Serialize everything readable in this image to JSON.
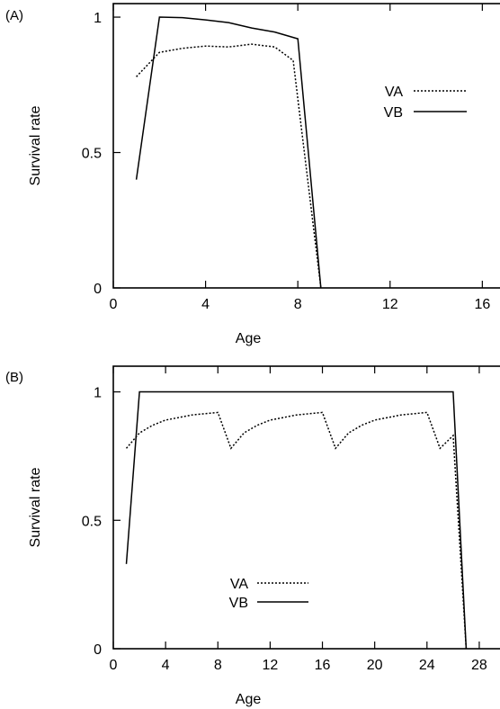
{
  "chart_data": [
    {
      "type": "line",
      "panel_label": "(A)",
      "xlabel": "Age",
      "ylabel": "Survival rate",
      "xlim": [
        0,
        17
      ],
      "ylim": [
        0,
        1.05
      ],
      "xticks": [
        0,
        4,
        8,
        12,
        16
      ],
      "yticks": [
        0,
        0.5,
        1
      ],
      "ytick_labels": [
        "0",
        "0.5",
        "1"
      ],
      "grid": false,
      "legend_position": "right",
      "series": [
        {
          "name": "VA",
          "style": "dotted",
          "x": [
            1,
            2,
            3,
            4,
            5,
            6,
            7,
            7.8,
            9
          ],
          "y": [
            0.78,
            0.87,
            0.885,
            0.893,
            0.89,
            0.9,
            0.89,
            0.84,
            0
          ]
        },
        {
          "name": "VB",
          "style": "solid",
          "x": [
            1,
            2,
            3,
            4,
            5,
            6,
            7,
            8,
            9
          ],
          "y": [
            0.4,
            1.0,
            0.998,
            0.99,
            0.98,
            0.96,
            0.945,
            0.92,
            0
          ]
        }
      ]
    },
    {
      "type": "line",
      "panel_label": "(B)",
      "xlabel": "Age",
      "ylabel": "Survival rate",
      "xlim": [
        0,
        30
      ],
      "ylim": [
        0,
        1.1
      ],
      "xticks": [
        0,
        4,
        8,
        12,
        16,
        20,
        24,
        28
      ],
      "yticks": [
        0,
        0.5,
        1
      ],
      "ytick_labels": [
        "0",
        "0.5",
        "1"
      ],
      "grid": false,
      "legend_position": "bottom-left",
      "series": [
        {
          "name": "VA",
          "style": "dotted",
          "x": [
            1,
            2,
            3,
            4,
            5,
            6,
            7,
            8,
            9,
            10,
            11,
            12,
            13,
            14,
            15,
            16,
            17,
            18,
            19,
            20,
            21,
            22,
            23,
            24,
            25,
            26,
            27
          ],
          "y": [
            0.78,
            0.84,
            0.87,
            0.89,
            0.9,
            0.91,
            0.915,
            0.92,
            0.78,
            0.84,
            0.87,
            0.89,
            0.9,
            0.91,
            0.915,
            0.92,
            0.78,
            0.84,
            0.87,
            0.89,
            0.9,
            0.91,
            0.915,
            0.92,
            0.78,
            0.83,
            0
          ]
        },
        {
          "name": "VB",
          "style": "solid",
          "x": [
            1,
            2,
            26,
            27
          ],
          "y": [
            0.33,
            1.0,
            1.0,
            0
          ]
        }
      ]
    }
  ]
}
